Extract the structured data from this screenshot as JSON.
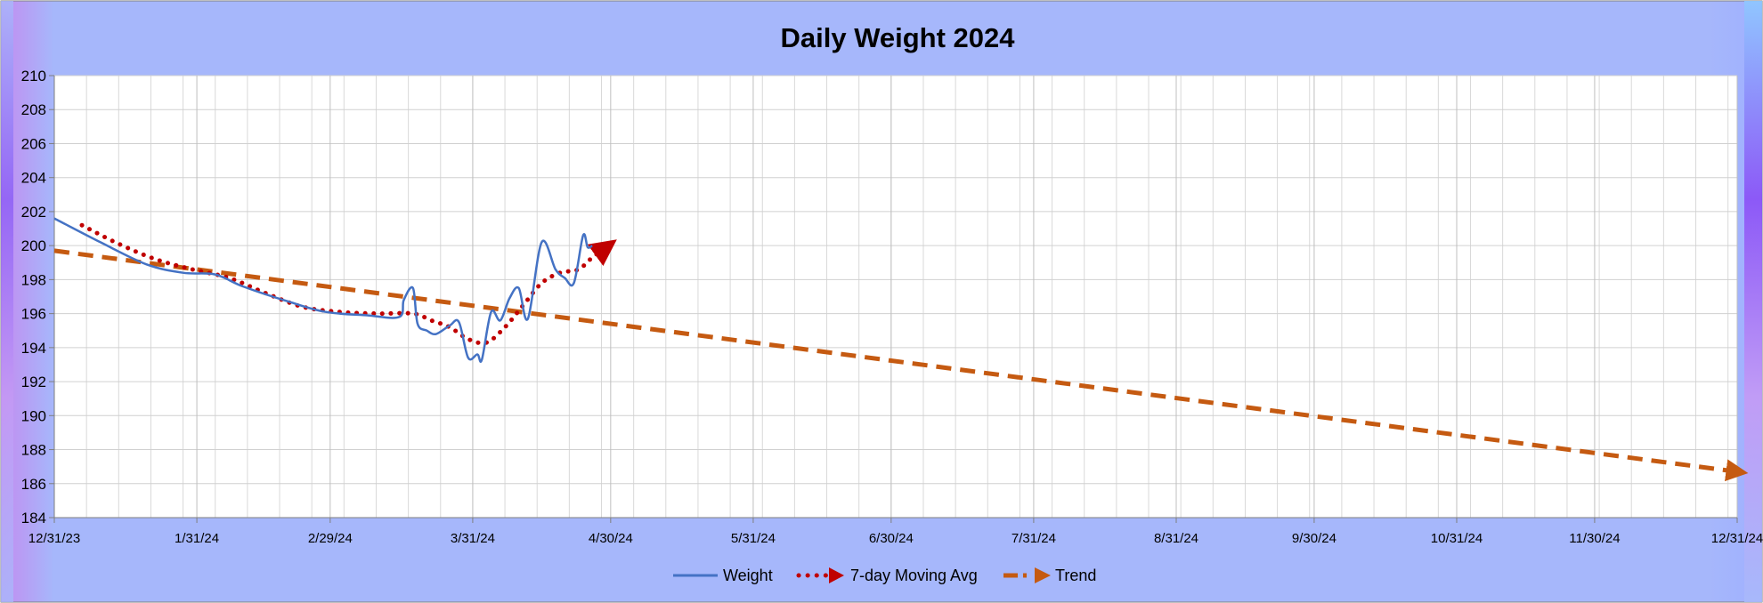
{
  "chart_data": {
    "type": "line",
    "title": "Daily Weight 2024",
    "xlabel": "",
    "ylabel": "",
    "x_axis": {
      "min": "2023-12-31",
      "max": "2024-12-31",
      "tick_labels": [
        "12/31/23",
        "1/31/24",
        "2/29/24",
        "3/31/24",
        "4/30/24",
        "5/31/24",
        "6/30/24",
        "7/31/24",
        "8/31/24",
        "9/30/24",
        "10/31/24",
        "11/30/24",
        "12/31/24"
      ],
      "tick_dates": [
        "2023-12-31",
        "2024-01-31",
        "2024-02-29",
        "2024-03-31",
        "2024-04-30",
        "2024-05-31",
        "2024-06-30",
        "2024-07-31",
        "2024-08-31",
        "2024-09-30",
        "2024-10-31",
        "2024-11-30",
        "2024-12-31"
      ],
      "minor_grid": "weekly"
    },
    "y_axis": {
      "ylim": [
        184,
        210
      ],
      "ticks": [
        184,
        186,
        188,
        190,
        192,
        194,
        196,
        198,
        200,
        202,
        204,
        206,
        208,
        210
      ]
    },
    "grid": true,
    "legend": {
      "position": "bottom",
      "entries": [
        "Weight",
        "7-day Moving Avg",
        "Trend"
      ]
    },
    "series": [
      {
        "name": "Weight",
        "style": "solid",
        "color": "#4472C4",
        "points": [
          [
            "2023-12-31",
            201.6
          ],
          [
            "2024-01-10",
            200.2
          ],
          [
            "2024-01-20",
            198.9
          ],
          [
            "2024-01-28",
            198.4
          ],
          [
            "2024-02-04",
            198.3
          ],
          [
            "2024-02-10",
            197.6
          ],
          [
            "2024-02-20",
            196.7
          ],
          [
            "2024-02-28",
            196.1
          ],
          [
            "2024-03-08",
            195.9
          ],
          [
            "2024-03-15",
            195.8
          ],
          [
            "2024-03-16",
            196.8
          ],
          [
            "2024-03-18",
            197.5
          ],
          [
            "2024-03-19",
            195.4
          ],
          [
            "2024-03-21",
            195.0
          ],
          [
            "2024-03-23",
            194.8
          ],
          [
            "2024-03-26",
            195.3
          ],
          [
            "2024-03-28",
            195.5
          ],
          [
            "2024-03-30",
            193.4
          ],
          [
            "2024-04-01",
            193.6
          ],
          [
            "2024-04-02",
            193.3
          ],
          [
            "2024-04-04",
            196.1
          ],
          [
            "2024-04-06",
            195.6
          ],
          [
            "2024-04-08",
            196.9
          ],
          [
            "2024-04-10",
            197.5
          ],
          [
            "2024-04-12",
            195.7
          ],
          [
            "2024-04-15",
            200.2
          ],
          [
            "2024-04-18",
            198.6
          ],
          [
            "2024-04-20",
            198.1
          ],
          [
            "2024-04-22",
            197.8
          ],
          [
            "2024-04-24",
            200.6
          ],
          [
            "2024-04-25",
            199.9
          ],
          [
            "2024-04-26",
            200.0
          ]
        ]
      },
      {
        "name": "7-day Moving Avg",
        "style": "dotted",
        "color": "#C00000",
        "points": [
          [
            "2024-01-06",
            201.2
          ],
          [
            "2024-01-14",
            200.1
          ],
          [
            "2024-01-22",
            199.2
          ],
          [
            "2024-01-30",
            198.6
          ],
          [
            "2024-02-07",
            198.1
          ],
          [
            "2024-02-15",
            197.2
          ],
          [
            "2024-02-23",
            196.4
          ],
          [
            "2024-03-02",
            196.1
          ],
          [
            "2024-03-10",
            196.0
          ],
          [
            "2024-03-18",
            196.0
          ],
          [
            "2024-03-22",
            195.6
          ],
          [
            "2024-03-26",
            195.2
          ],
          [
            "2024-03-30",
            194.5
          ],
          [
            "2024-04-03",
            194.3
          ],
          [
            "2024-04-07",
            195.2
          ],
          [
            "2024-04-11",
            196.5
          ],
          [
            "2024-04-15",
            197.8
          ],
          [
            "2024-04-19",
            198.4
          ],
          [
            "2024-04-23",
            198.6
          ],
          [
            "2024-04-26",
            199.3
          ],
          [
            "2024-04-29",
            199.9
          ]
        ]
      },
      {
        "name": "Trend",
        "style": "dashed",
        "color": "#C55A11",
        "points": [
          [
            "2023-12-31",
            199.7
          ],
          [
            "2024-12-31",
            186.7
          ]
        ]
      }
    ]
  }
}
